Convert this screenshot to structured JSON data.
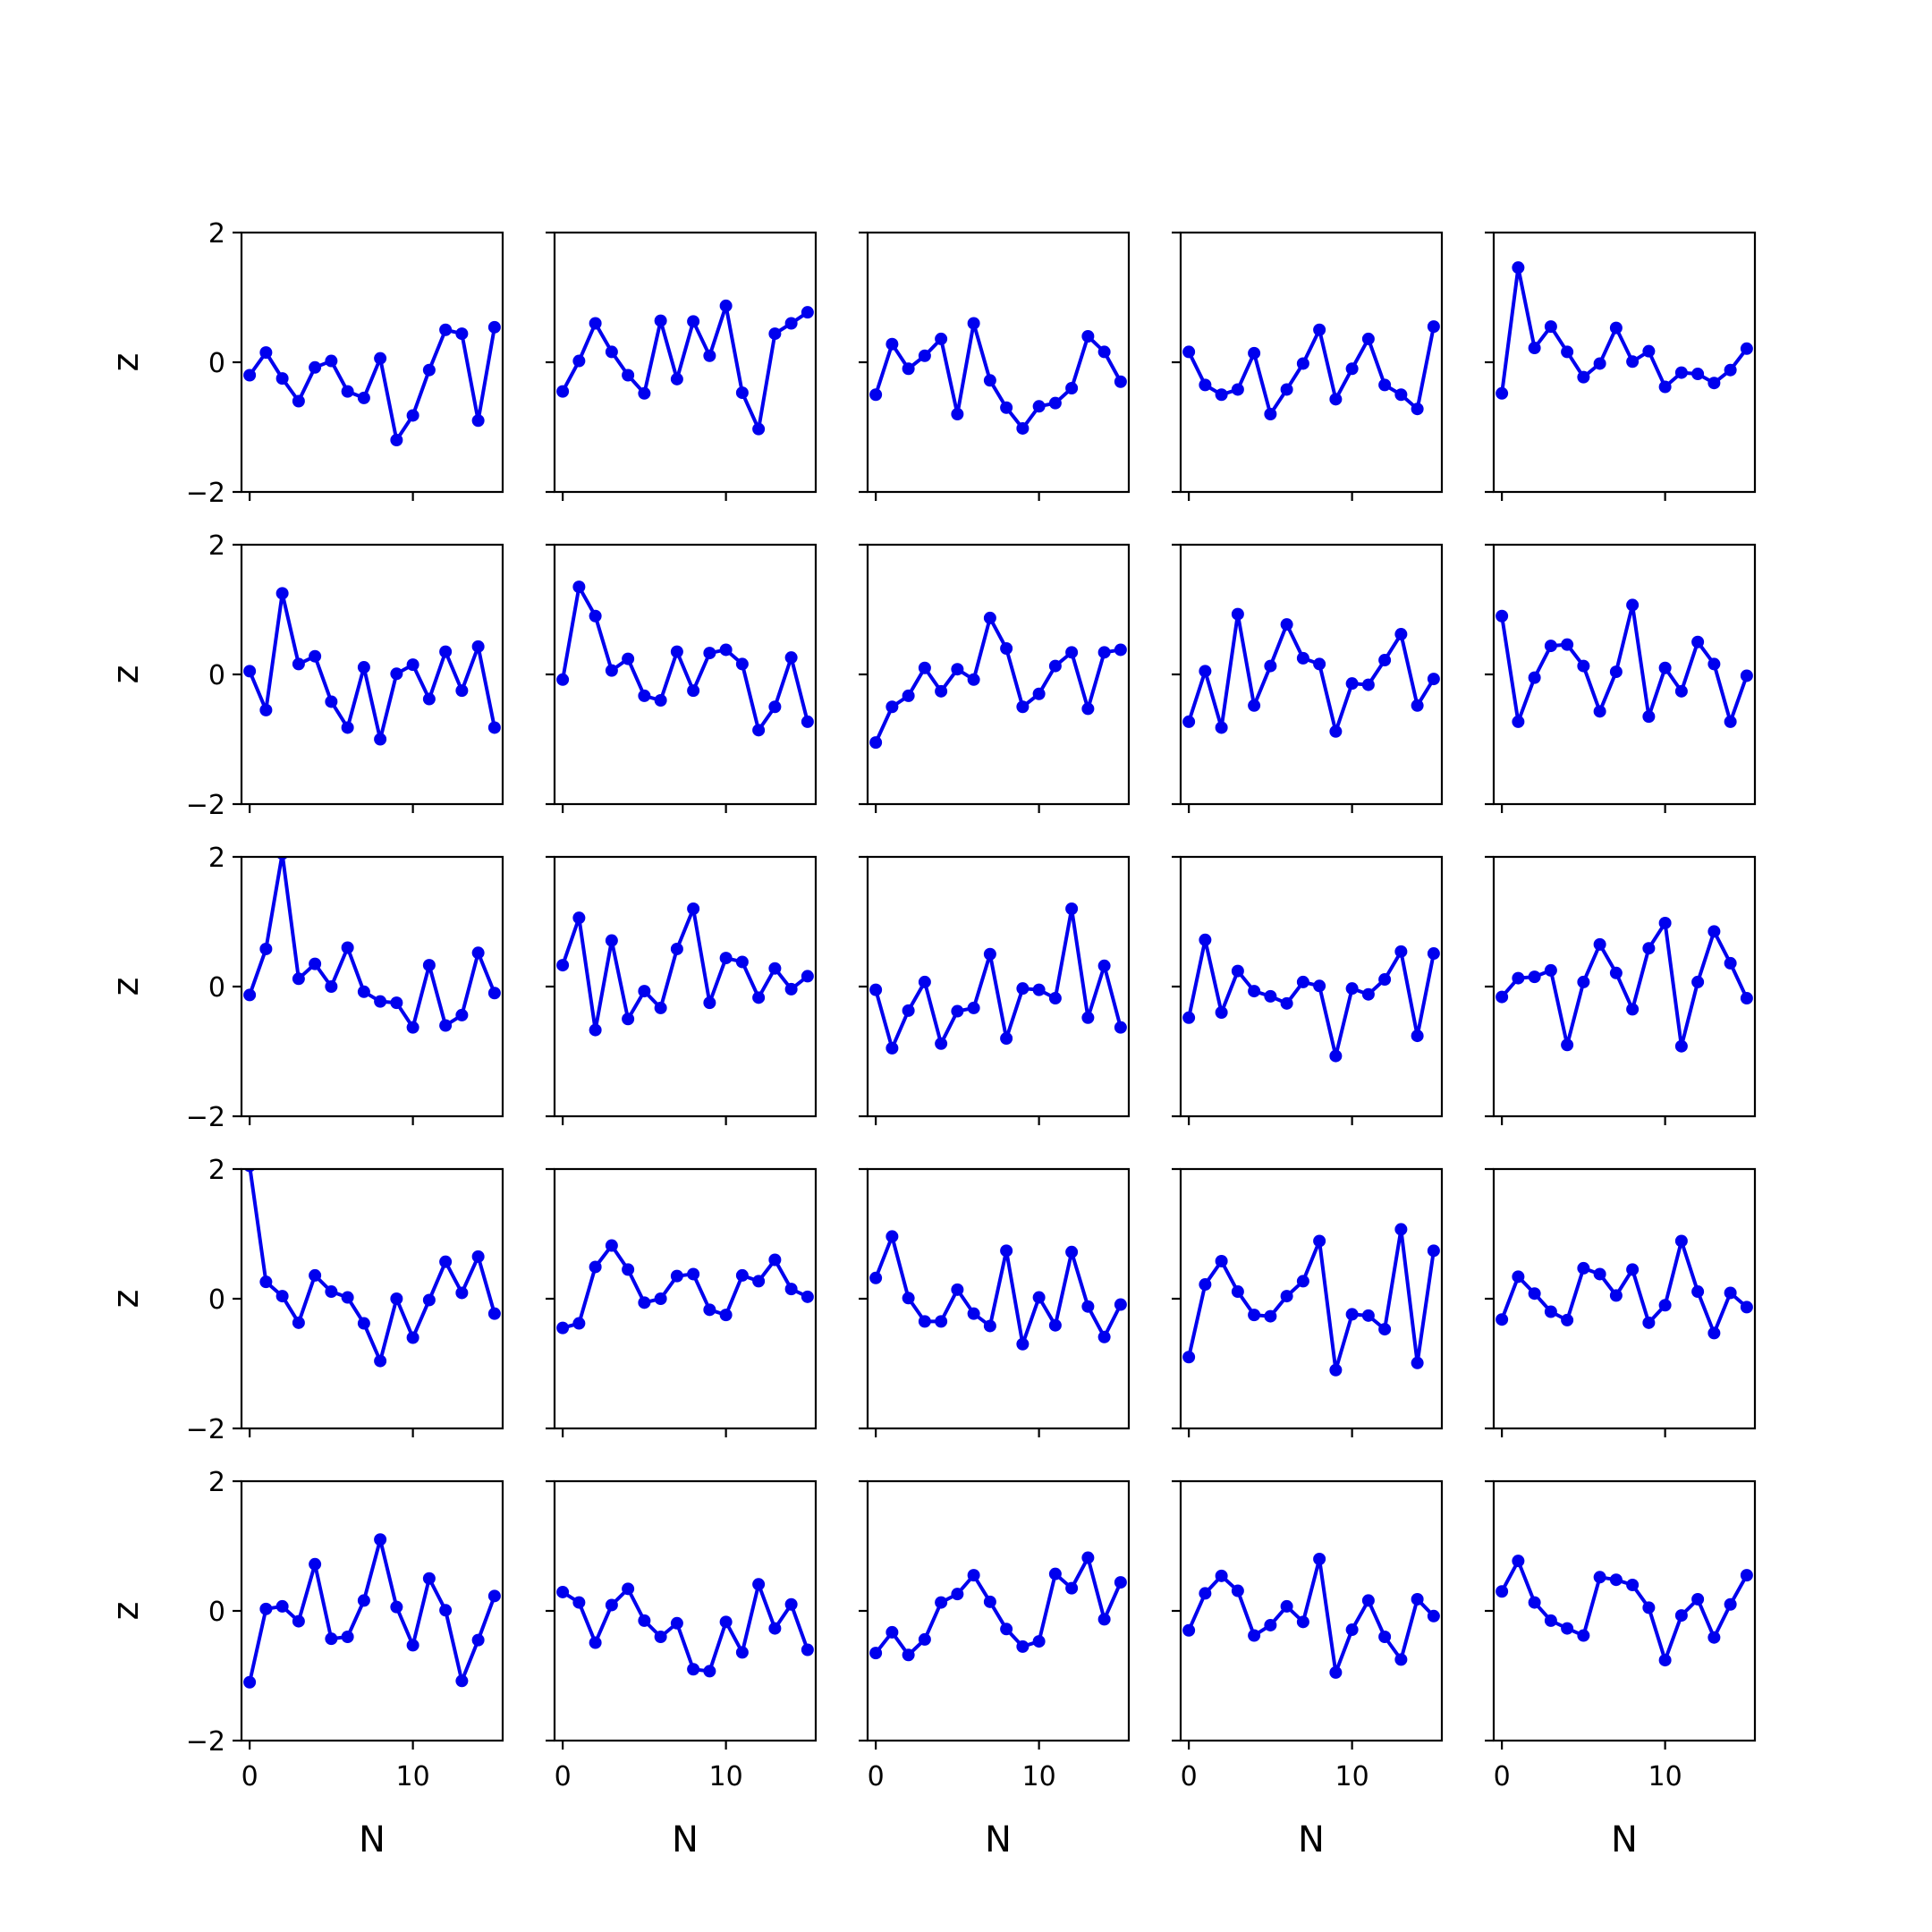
{
  "chart_data": {
    "type": "line",
    "layout": "5x5 grid of small multiples with shared axes",
    "xlabel": "N",
    "ylabel": "z",
    "xlim": [
      -0.5,
      15.5
    ],
    "ylim": [
      -2,
      2
    ],
    "xticks": [
      0,
      10
    ],
    "xtick_labels": [
      "0",
      "10"
    ],
    "yticks": [
      -2,
      0,
      2
    ],
    "ytick_labels": [
      "−2",
      "0",
      "2"
    ],
    "line_color": "#0000ee",
    "marker": "circle",
    "grid": false,
    "x": [
      0,
      1,
      2,
      3,
      4,
      5,
      6,
      7,
      8,
      9,
      10,
      11,
      12,
      13,
      14,
      15
    ],
    "panels": [
      [
        -0.2,
        0.15,
        -0.25,
        -0.6,
        -0.08,
        0.02,
        -0.45,
        -0.55,
        0.06,
        -1.2,
        -0.82,
        -0.12,
        0.5,
        0.44,
        -0.9,
        0.54
      ],
      [
        -0.45,
        0.02,
        0.6,
        0.16,
        -0.2,
        -0.48,
        0.64,
        -0.26,
        0.63,
        0.1,
        0.87,
        -0.47,
        -1.03,
        0.44,
        0.6,
        0.77
      ],
      [
        -0.5,
        0.28,
        -0.1,
        0.1,
        0.36,
        -0.8,
        0.6,
        -0.28,
        -0.7,
        -1.02,
        -0.68,
        -0.63,
        -0.4,
        0.4,
        0.16,
        -0.3
      ],
      [
        0.16,
        -0.35,
        -0.5,
        -0.42,
        0.14,
        -0.8,
        -0.42,
        -0.02,
        0.5,
        -0.57,
        -0.1,
        0.36,
        -0.35,
        -0.5,
        -0.72,
        0.55
      ],
      [
        -0.48,
        1.46,
        0.22,
        0.55,
        0.16,
        -0.23,
        -0.02,
        0.53,
        0.01,
        0.17,
        -0.38,
        -0.16,
        -0.18,
        -0.32,
        -0.12,
        0.21
      ],
      [
        0.05,
        -0.55,
        1.25,
        0.16,
        0.28,
        -0.42,
        -0.82,
        0.11,
        -1.0,
        0.01,
        0.15,
        -0.38,
        0.35,
        -0.25,
        0.43,
        -0.82
      ],
      [
        -0.08,
        1.35,
        0.9,
        0.06,
        0.24,
        -0.33,
        -0.4,
        0.35,
        -0.25,
        0.33,
        0.38,
        0.16,
        -0.86,
        -0.5,
        0.26,
        -0.73
      ],
      [
        -1.05,
        -0.5,
        -0.33,
        0.1,
        -0.26,
        0.08,
        -0.08,
        0.87,
        0.4,
        -0.5,
        -0.3,
        0.13,
        0.34,
        -0.53,
        0.34,
        0.38
      ],
      [
        -0.73,
        0.05,
        -0.82,
        0.93,
        -0.48,
        0.13,
        0.77,
        0.25,
        0.16,
        -0.88,
        -0.14,
        -0.16,
        0.22,
        0.62,
        -0.48,
        -0.07
      ],
      [
        0.9,
        -0.73,
        -0.05,
        0.44,
        0.46,
        0.13,
        -0.57,
        0.04,
        1.07,
        -0.65,
        0.1,
        -0.26,
        0.5,
        0.16,
        -0.73,
        -0.02
      ],
      [
        -0.13,
        0.58,
        2.05,
        0.12,
        0.35,
        0.0,
        0.6,
        -0.08,
        -0.23,
        -0.25,
        -0.63,
        0.33,
        -0.6,
        -0.44,
        0.52,
        -0.1
      ],
      [
        0.33,
        1.06,
        -0.67,
        0.71,
        -0.5,
        -0.07,
        -0.33,
        0.58,
        1.2,
        -0.25,
        0.44,
        0.38,
        -0.17,
        0.28,
        -0.04,
        0.16
      ],
      [
        -0.05,
        -0.95,
        -0.37,
        0.07,
        -0.88,
        -0.38,
        -0.33,
        0.5,
        -0.8,
        -0.03,
        -0.05,
        -0.18,
        1.2,
        -0.48,
        0.32,
        -0.63
      ],
      [
        -0.48,
        0.72,
        -0.4,
        0.24,
        -0.07,
        -0.15,
        -0.26,
        0.07,
        0.01,
        -1.07,
        -0.03,
        -0.12,
        0.11,
        0.54,
        -0.76,
        0.51
      ],
      [
        -0.16,
        0.13,
        0.15,
        0.25,
        -0.9,
        0.07,
        0.65,
        0.21,
        -0.35,
        0.59,
        0.98,
        -0.92,
        0.07,
        0.85,
        0.36,
        -0.18
      ],
      [
        2.05,
        0.26,
        0.04,
        -0.37,
        0.36,
        0.11,
        0.02,
        -0.38,
        -0.96,
        0.0,
        -0.6,
        -0.02,
        0.57,
        0.09,
        0.65,
        -0.23
      ],
      [
        -0.45,
        -0.38,
        0.49,
        0.82,
        0.45,
        -0.06,
        0.0,
        0.35,
        0.38,
        -0.17,
        -0.25,
        0.36,
        0.27,
        0.6,
        0.15,
        0.03
      ],
      [
        0.32,
        0.96,
        0.01,
        -0.35,
        -0.35,
        0.14,
        -0.23,
        -0.42,
        0.74,
        -0.7,
        0.02,
        -0.41,
        0.72,
        -0.12,
        -0.59,
        -0.09
      ],
      [
        -0.9,
        0.22,
        0.58,
        0.11,
        -0.25,
        -0.27,
        0.04,
        0.27,
        0.89,
        -1.1,
        -0.24,
        -0.26,
        -0.47,
        1.07,
        -0.99,
        0.74
      ],
      [
        -0.32,
        0.34,
        0.08,
        -0.2,
        -0.33,
        0.47,
        0.38,
        0.05,
        0.45,
        -0.37,
        -0.1,
        0.89,
        0.11,
        -0.53,
        0.09,
        -0.13
      ],
      [
        -1.1,
        0.03,
        0.07,
        -0.16,
        0.72,
        -0.43,
        -0.4,
        0.16,
        1.1,
        0.06,
        -0.53,
        0.5,
        0.01,
        -1.08,
        -0.45,
        0.23
      ],
      [
        0.29,
        0.13,
        -0.49,
        0.09,
        0.34,
        -0.15,
        -0.4,
        -0.19,
        -0.9,
        -0.93,
        -0.17,
        -0.64,
        0.41,
        -0.27,
        0.1,
        -0.6
      ],
      [
        -0.65,
        -0.33,
        -0.68,
        -0.44,
        0.13,
        0.26,
        0.55,
        0.14,
        -0.28,
        -0.55,
        -0.47,
        0.57,
        0.35,
        0.82,
        -0.13,
        0.44
      ],
      [
        -0.3,
        0.27,
        0.54,
        0.31,
        -0.38,
        -0.22,
        0.07,
        -0.17,
        0.8,
        -0.95,
        -0.29,
        0.16,
        -0.4,
        -0.75,
        0.18,
        -0.08
      ],
      [
        0.3,
        0.77,
        0.13,
        -0.15,
        -0.27,
        -0.38,
        0.52,
        0.48,
        0.4,
        0.05,
        -0.76,
        -0.07,
        0.18,
        -0.41,
        0.1,
        0.55
      ]
    ]
  }
}
